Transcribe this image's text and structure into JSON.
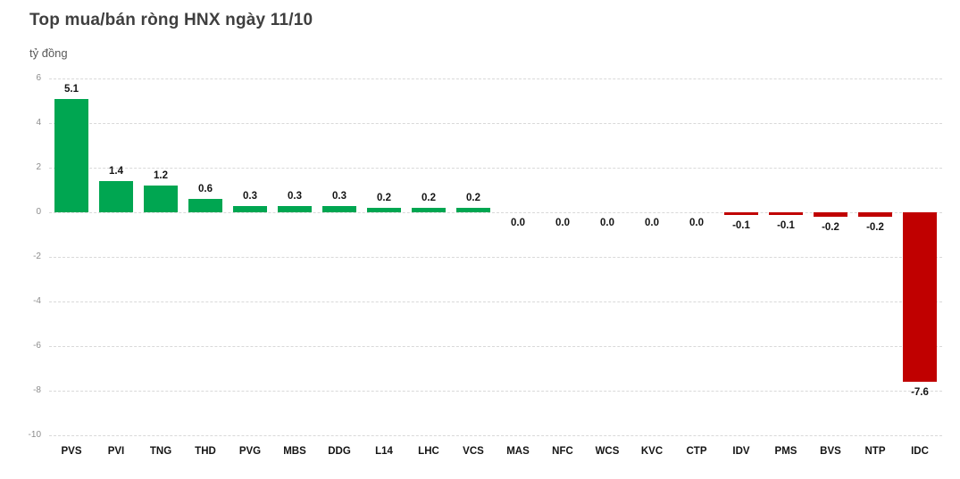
{
  "title": "Top mua/bán ròng HNX ngày 11/10",
  "unit_label": "tỷ đồng",
  "colors": {
    "positive": "#00A651",
    "negative": "#C00000",
    "grid": "#D9D9D9",
    "tick_text": "#8C8C8C",
    "label_text": "#141414",
    "title_text": "#3F3F3F"
  },
  "chart_data": {
    "type": "bar",
    "title": "Top mua/bán ròng HNX ngày 11/10",
    "xlabel": "",
    "ylabel": "tỷ đồng",
    "categories": [
      "PVS",
      "PVI",
      "TNG",
      "THD",
      "PVG",
      "MBS",
      "DDG",
      "L14",
      "LHC",
      "VCS",
      "MAS",
      "NFC",
      "WCS",
      "KVC",
      "CTP",
      "IDV",
      "PMS",
      "BVS",
      "NTP",
      "IDC"
    ],
    "values": [
      5.1,
      1.4,
      1.2,
      0.6,
      0.3,
      0.3,
      0.3,
      0.2,
      0.2,
      0.2,
      0.0,
      0.0,
      0.0,
      0.0,
      0.0,
      -0.1,
      -0.1,
      -0.2,
      -0.2,
      -7.6
    ],
    "value_labels": [
      "5.1",
      "1.4",
      "1.2",
      "0.6",
      "0.3",
      "0.3",
      "0.3",
      "0.2",
      "0.2",
      "0.2",
      "0.0",
      "0.0",
      "0.0",
      "0.0",
      "0.0",
      "-0.1",
      "-0.1",
      "-0.2",
      "-0.2",
      "-7.6"
    ],
    "ylim": [
      -10,
      6
    ],
    "yticks": [
      6,
      4,
      2,
      0,
      -2,
      -4,
      -6,
      -8,
      -10
    ],
    "grid": true,
    "grid_style": "dashed",
    "legend": false,
    "bar_color_positive": "#00A651",
    "bar_color_negative": "#C00000"
  }
}
